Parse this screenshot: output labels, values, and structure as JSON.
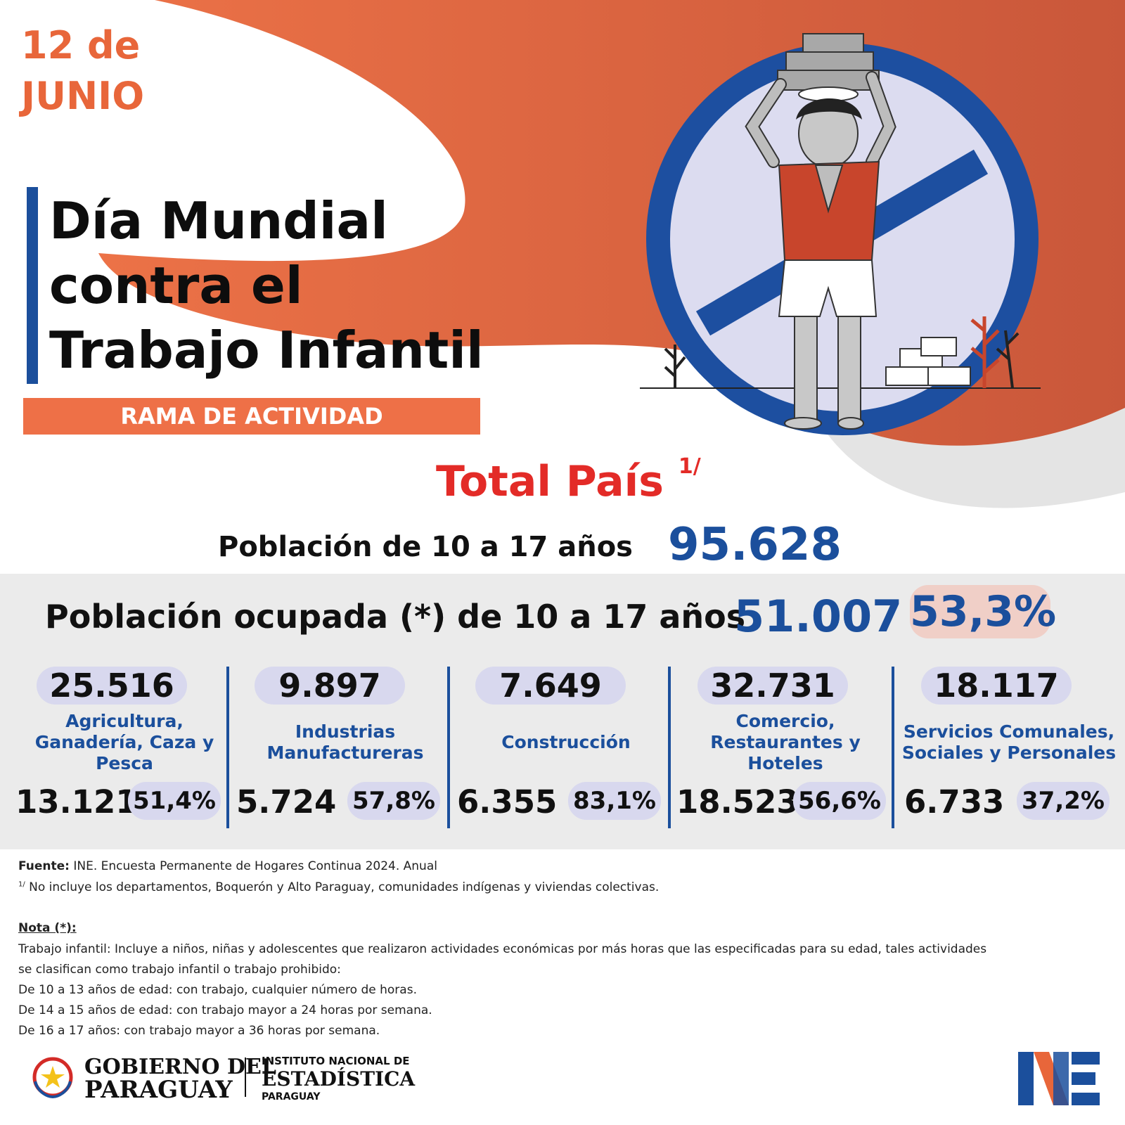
{
  "header": {
    "date_line1": "12 de",
    "date_line2": "JUNIO",
    "title_line1": "Día Mundial",
    "title_line2": "contra el",
    "title_line3": "Trabajo Infantil",
    "subtitle": "RAMA DE ACTIVIDAD"
  },
  "totals": {
    "heading": "Total País",
    "heading_note": "1/",
    "population_label": "Población de 10 a 17 años",
    "population_value": "95.628",
    "occupied_label": "Población ocupada (*)  de 10 a 17 años",
    "occupied_value": "51.007",
    "occupied_pct": "53,3%"
  },
  "sectors": [
    {
      "total": "25.516",
      "name": "Agricultura, Ganadería, Caza y Pesca",
      "count": "13.121",
      "pct": "51,4%"
    },
    {
      "total": "9.897",
      "name": "Industrias Manufactureras",
      "count": "5.724",
      "pct": "57,8%"
    },
    {
      "total": "7.649",
      "name": "Construcción",
      "count": "6.355",
      "pct": "83,1%"
    },
    {
      "total": "32.731",
      "name": "Comercio, Restaurantes y Hoteles",
      "count": "18.523",
      "pct": "56,6%"
    },
    {
      "total": "18.117",
      "name": "Servicios Comunales, Sociales y Personales",
      "count": "6.733",
      "pct": "37,2%"
    }
  ],
  "footer": {
    "source_label": "Fuente:",
    "source_text": " INE. Encuesta Permanente de Hogares Continua 2024. Anual",
    "note1_mark": "1/",
    "note1_text": " No incluye los departamentos, Boquerón y Alto Paraguay, comunidades indígenas y viviendas colectivas.",
    "nota_label": "Nota (*):",
    "nota_lines": [
      "Trabajo infantil: Incluye a niños, niñas y adolescentes que realizaron actividades económicas por más horas que las especificadas para su edad, tales actividades",
      "se clasifican como trabajo infantil o trabajo prohibido:",
      "De 10 a 13 años de edad: con trabajo, cualquier número de horas.",
      "De 14 a 15 años de edad: con trabajo mayor a 24 horas por semana.",
      "De 16 a 17 años: con trabajo mayor a 36 horas por semana."
    ]
  },
  "logos": {
    "gov_line1": "GOBIERNO DEL",
    "gov_line2": "PARAGUAY",
    "ine_line1": "INSTITUTO NACIONAL DE",
    "ine_line2": "ESTADÍSTICA",
    "ine_line3": "PARAGUAY"
  },
  "colors": {
    "orange": "#e8663a",
    "blue": "#1b4f9c",
    "red": "#e32b27",
    "lavender": "#d8d8ee",
    "band_gray": "#ebebeb"
  }
}
